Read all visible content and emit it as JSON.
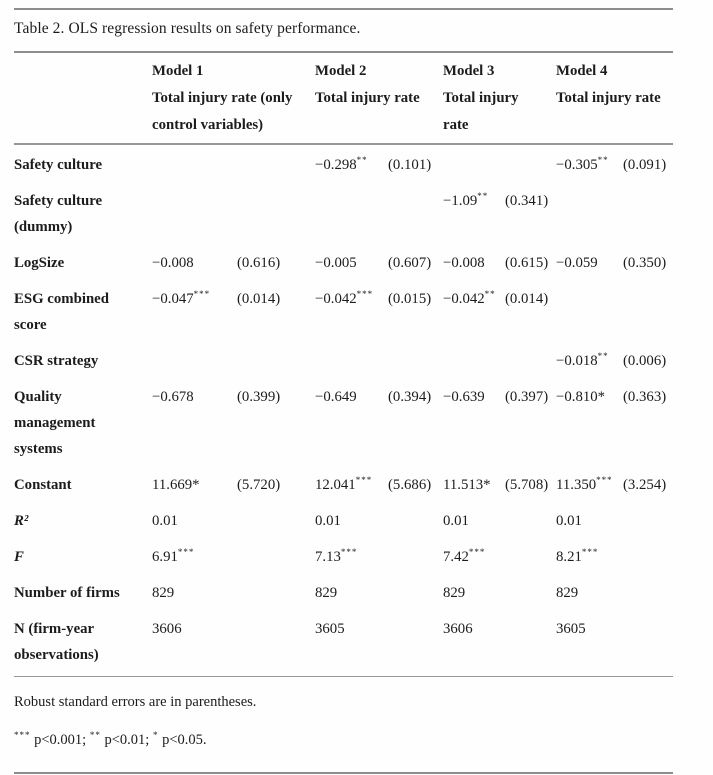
{
  "caption": "Table 2. OLS regression results on safety performance.",
  "table": {
    "col_headers": [
      {
        "model": "Model 1",
        "dv_lines": [
          "Total injury rate (only",
          "control variables)"
        ]
      },
      {
        "model": "Model 2",
        "dv_lines": [
          "Total injury rate"
        ]
      },
      {
        "model": "Model 3",
        "dv_lines": [
          "Total injury",
          "rate"
        ]
      },
      {
        "model": "Model 4",
        "dv_lines": [
          "Total injury rate"
        ]
      }
    ],
    "rows": [
      {
        "label": [
          "Safety culture"
        ],
        "cells": [
          {},
          {
            "c": "−0.298",
            "s": "**",
            "se": "(0.101)"
          },
          {},
          {
            "c": "−0.305",
            "s": "**",
            "se": "(0.091)"
          }
        ]
      },
      {
        "label": [
          "Safety culture",
          "(dummy)"
        ],
        "cells": [
          {},
          {},
          {
            "c": "−1.09",
            "s": "**",
            "se": "(0.341)"
          },
          {}
        ]
      },
      {
        "label": [
          "LogSize"
        ],
        "cells": [
          {
            "c": "−0.008",
            "se": "(0.616)"
          },
          {
            "c": "−0.005",
            "se": "(0.607)"
          },
          {
            "c": "−0.008",
            "se": "(0.615)"
          },
          {
            "c": "−0.059",
            "se": "(0.350)"
          }
        ]
      },
      {
        "label": [
          "ESG combined",
          "score"
        ],
        "cells": [
          {
            "c": "−0.047",
            "s": "***",
            "se": "(0.014)"
          },
          {
            "c": "−0.042",
            "s": "***",
            "se": "(0.015)"
          },
          {
            "c": "−0.042",
            "s": "**",
            "se": "(0.014)"
          },
          {}
        ]
      },
      {
        "label": [
          "CSR strategy"
        ],
        "cells": [
          {},
          {},
          {},
          {
            "c": "−0.018",
            "s": "**",
            "se": "(0.006)"
          }
        ]
      },
      {
        "label": [
          "Quality",
          "management",
          "systems"
        ],
        "cells": [
          {
            "c": "−0.678",
            "se": "(0.399)"
          },
          {
            "c": "−0.649",
            "se": "(0.394)"
          },
          {
            "c": "−0.639",
            "se": "(0.397)"
          },
          {
            "c": "−0.810*",
            "se": "(0.363)"
          }
        ]
      },
      {
        "label": [
          "Constant"
        ],
        "cells": [
          {
            "c": "11.669*",
            "se": "(5.720)"
          },
          {
            "c": "12.041",
            "s": "***",
            "se": "(5.686)"
          },
          {
            "c": "11.513*",
            "se": "(5.708)"
          },
          {
            "c": "11.350",
            "s": "***",
            "se": "(3.254)"
          }
        ]
      },
      {
        "label": [
          "R²"
        ],
        "italic": true,
        "cells": [
          {
            "c": "0.01"
          },
          {
            "c": "0.01"
          },
          {
            "c": "0.01"
          },
          {
            "c": "0.01"
          }
        ]
      },
      {
        "label": [
          "F"
        ],
        "italic": true,
        "cells": [
          {
            "c": "6.91",
            "s": "***"
          },
          {
            "c": "7.13",
            "s": "***"
          },
          {
            "c": "7.42",
            "s": "***"
          },
          {
            "c": "8.21",
            "s": "***"
          }
        ]
      },
      {
        "label": [
          "Number of firms"
        ],
        "cells": [
          {
            "c": "829"
          },
          {
            "c": "829"
          },
          {
            "c": "829"
          },
          {
            "c": "829"
          }
        ]
      },
      {
        "label": [
          "N (firm-year",
          "observations)"
        ],
        "cells": [
          {
            "c": "3606"
          },
          {
            "c": "3605"
          },
          {
            "c": "3606"
          },
          {
            "c": "3605"
          }
        ]
      }
    ]
  },
  "footnotes": {
    "se_note": "Robust standard errors are in parentheses.",
    "sig_levels": [
      {
        "stars": "***",
        "text": " p<0.001; "
      },
      {
        "stars": "**",
        "text": " p<0.01; "
      },
      {
        "stars": "*",
        "text": " p<0.05."
      }
    ]
  }
}
